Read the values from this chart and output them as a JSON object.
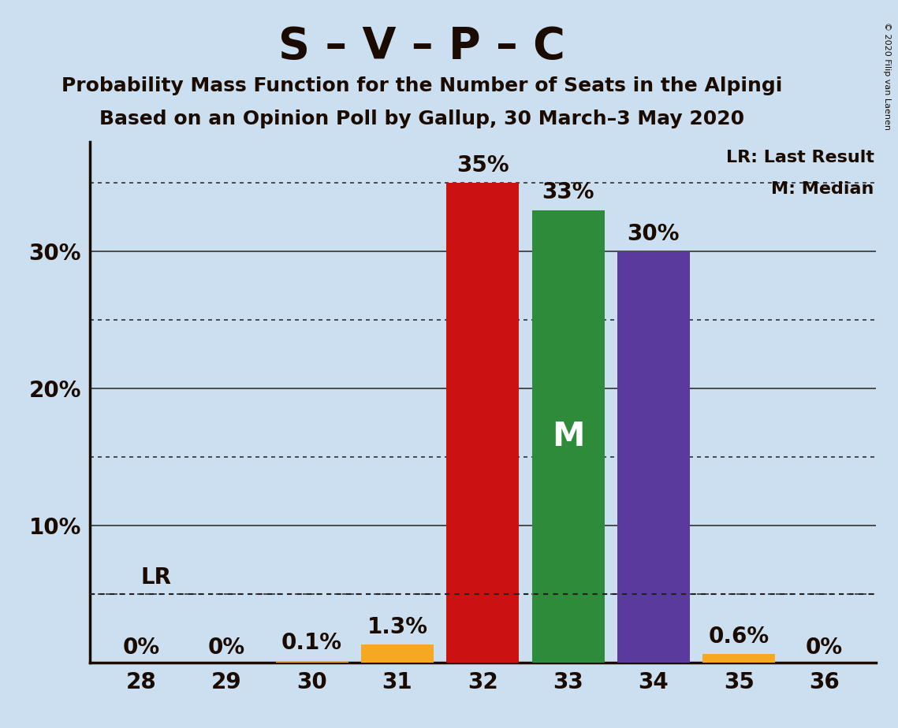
{
  "title": "S – V – P – C",
  "subtitle1": "Probability Mass Function for the Number of Seats in the Alpingi",
  "subtitle2": "Based on an Opinion Poll by Gallup, 30 March–3 May 2020",
  "copyright": "© 2020 Filip van Laenen",
  "seats": [
    28,
    29,
    30,
    31,
    32,
    33,
    34,
    35,
    36
  ],
  "values": [
    0.0,
    0.0,
    0.1,
    1.3,
    35.0,
    33.0,
    30.0,
    0.6,
    0.0
  ],
  "bar_colors": [
    "#F5A820",
    "#F5A820",
    "#F5A820",
    "#F5A820",
    "#CC1111",
    "#2E8B3A",
    "#5B3A9E",
    "#F5A820",
    "#F5A820"
  ],
  "median_seat": 33,
  "lr_value": 5.0,
  "background_color": "#CCDFF0",
  "plot_bg_color": "#CCDFF0",
  "ylim": [
    0,
    38
  ],
  "bar_labels": [
    "0%",
    "0%",
    "0.1%",
    "1.3%",
    "35%",
    "33%",
    "30%",
    "0.6%",
    "0%"
  ],
  "legend_lr": "LR: Last Result",
  "legend_m": "M: Median",
  "label_fontsize": 20,
  "title_fontsize": 40,
  "subtitle_fontsize": 18,
  "bar_width": 0.85
}
